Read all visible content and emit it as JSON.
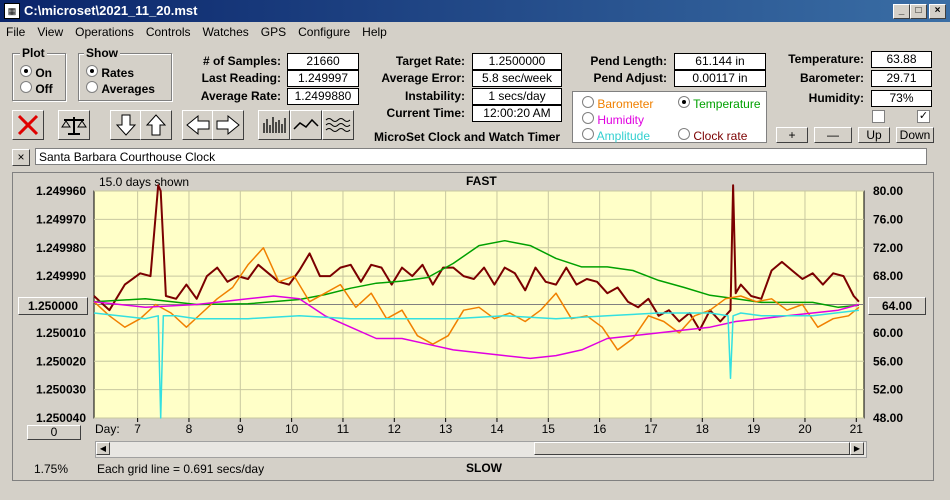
{
  "window": {
    "title": "C:\\microset\\2021_11_20.mst"
  },
  "menu": [
    "File",
    "View",
    "Operations",
    "Controls",
    "Watches",
    "GPS",
    "Configure",
    "Help"
  ],
  "plot": {
    "title": "Plot",
    "on": "On",
    "off": "Off"
  },
  "show": {
    "title": "Show",
    "rates": "Rates",
    "averages": "Averages"
  },
  "stats": {
    "samples_label": "# of Samples:",
    "samples": "21660",
    "last_label": "Last Reading:",
    "last": "1.249997",
    "avg_label": "Average Rate:",
    "avg": "1.2499880",
    "target_label": "Target Rate:",
    "target": "1.2500000",
    "averr_label": "Average Error:",
    "averr": "5.8 sec/week",
    "instab_label": "Instability:",
    "instab": "1 secs/day",
    "curtime_label": "Current Time:",
    "curtime": "12:00:20 AM",
    "pendlen_label": "Pend Length:",
    "pendlen": "61.144 in",
    "pendadj_label": "Pend Adjust:",
    "pendadj": "0.00117 in",
    "temp_label": "Temperature:",
    "temp": "63.88",
    "baro_label": "Barometer:",
    "baro": "29.71",
    "hum_label": "Humidity:",
    "hum": "73%"
  },
  "app_caption": "MicroSet Clock and Watch Timer",
  "sensors": {
    "barometer": "Barometer",
    "temperature": "Temperature",
    "humidity": "Humidity",
    "amplitude": "Amplitude",
    "clockrate": "Clock rate"
  },
  "scale_buttons": [
    "+",
    "—",
    "Up",
    "Down"
  ],
  "clock_name": "Santa Barbara Courthouse Clock",
  "chart": {
    "days_shown": "15.0 days shown",
    "fast": "FAST",
    "slow": "SLOW",
    "grid_note": "Each grid line = 0.691 secs/day",
    "pct": "1.75%",
    "left_center_btn": "1.250000",
    "right_center_btn": "64.00",
    "bottom_left_btn": "0",
    "day_label": "Day:"
  },
  "chart_data": {
    "type": "line",
    "xlabel": "Day:",
    "x_ticks": [
      "7",
      "8",
      "9",
      "10",
      "11",
      "12",
      "13",
      "14",
      "15",
      "16",
      "17",
      "18",
      "19",
      "20",
      "21"
    ],
    "y_left_ticks": [
      "1.249960",
      "1.249970",
      "1.249980",
      "1.249990",
      "1.250000",
      "1.250010",
      "1.250020",
      "1.250030",
      "1.250040"
    ],
    "y_right_ticks": [
      "80.00",
      "76.00",
      "72.00",
      "68.00",
      "64.00",
      "60.00",
      "56.00",
      "52.00",
      "48.00"
    ],
    "xlim": [
      6.0,
      21.0
    ],
    "ylim_left": [
      1.25004,
      1.24996
    ],
    "ylim_right": [
      48,
      80
    ],
    "series": [
      {
        "name": "Clock rate",
        "color": "#7b0000",
        "axis": "left",
        "x": [
          6.0,
          6.3,
          6.6,
          6.9,
          7.1,
          7.25,
          7.3,
          7.4,
          7.6,
          7.8,
          8.0,
          8.2,
          8.4,
          8.6,
          8.8,
          9.0,
          9.2,
          9.4,
          9.6,
          9.8,
          10.0,
          10.2,
          10.4,
          10.6,
          10.8,
          11.0,
          11.2,
          11.4,
          11.6,
          11.8,
          12.0,
          12.2,
          12.4,
          12.6,
          12.8,
          13.0,
          13.2,
          13.4,
          13.6,
          13.8,
          14.0,
          14.2,
          14.4,
          14.6,
          14.8,
          15.0,
          15.2,
          15.4,
          15.6,
          15.8,
          16.0,
          16.2,
          16.4,
          16.6,
          16.8,
          17.0,
          17.2,
          17.4,
          17.6,
          17.8,
          18.0,
          18.2,
          18.4,
          18.45,
          18.5,
          18.6,
          18.8,
          19.0,
          19.2,
          19.4,
          19.6,
          19.8,
          20.0,
          20.2,
          20.4,
          20.6,
          20.8,
          20.9
        ],
        "y": [
          1.249997,
          1.250002,
          1.249993,
          1.249989,
          1.24999,
          1.249958,
          1.24996,
          1.249997,
          1.249998,
          1.249993,
          1.249998,
          1.24999,
          1.249987,
          1.249992,
          1.24999,
          1.249991,
          1.249986,
          1.249989,
          1.249992,
          1.249993,
          1.249988,
          1.249982,
          1.24999,
          1.24999,
          1.249987,
          1.249986,
          1.249992,
          1.249986,
          1.249987,
          1.249993,
          1.249987,
          1.24999,
          1.249986,
          1.249993,
          1.249987,
          1.249987,
          1.24999,
          1.249991,
          1.249987,
          1.249993,
          1.249987,
          1.249989,
          1.249995,
          1.249987,
          1.249992,
          1.249993,
          1.249987,
          1.249993,
          1.249991,
          1.249992,
          1.249996,
          1.249994,
          1.249999,
          1.250001,
          1.249998,
          1.250004,
          1.250002,
          1.250006,
          1.250003,
          1.250009,
          1.250002,
          1.250006,
          1.250002,
          1.249958,
          1.249996,
          1.249993,
          1.249997,
          1.249998,
          1.249988,
          1.249985,
          1.249988,
          1.249991,
          1.249989,
          1.249993,
          1.249989,
          1.24999,
          1.249997,
          1.249999
        ]
      },
      {
        "name": "Temperature",
        "color": "#00a000",
        "axis": "right",
        "x": [
          6.0,
          7.0,
          8.0,
          9.0,
          10.0,
          10.5,
          11.0,
          11.5,
          12.0,
          12.5,
          13.0,
          13.5,
          14.0,
          14.5,
          15.0,
          15.5,
          16.0,
          16.5,
          17.0,
          17.5,
          18.0,
          18.5,
          19.0,
          19.5,
          20.0,
          20.5,
          20.9
        ],
        "y": [
          64.4,
          64.8,
          64.0,
          64.1,
          64.7,
          65.4,
          66.3,
          67.0,
          67.3,
          67.8,
          69.8,
          72.3,
          73.0,
          72.3,
          70.5,
          69.3,
          69.3,
          68.8,
          67.4,
          66.4,
          65.3,
          64.8,
          64.3,
          64.3,
          64.3,
          63.6,
          63.9
        ]
      },
      {
        "name": "Barometer",
        "color": "#f08000",
        "axis": "left",
        "x": [
          6.0,
          6.3,
          6.6,
          6.9,
          7.2,
          7.5,
          7.8,
          8.1,
          8.4,
          8.7,
          9.0,
          9.3,
          9.6,
          9.9,
          10.2,
          10.5,
          10.8,
          11.1,
          11.4,
          11.7,
          12.0,
          12.3,
          12.6,
          12.9,
          13.2,
          13.5,
          13.8,
          14.1,
          14.4,
          14.7,
          15.0,
          15.3,
          15.6,
          15.9,
          16.2,
          16.5,
          16.8,
          17.1,
          17.4,
          17.7,
          18.0,
          18.3,
          18.6,
          18.9,
          19.2,
          19.5,
          19.8,
          20.1,
          20.4,
          20.7,
          20.9
        ],
        "y": [
          1.249999,
          1.250004,
          1.250008,
          1.250005,
          1.25,
          1.250003,
          1.250008,
          1.250003,
          1.249998,
          1.249994,
          1.249986,
          1.24998,
          1.249992,
          1.24999,
          1.249999,
          1.249996,
          1.249993,
          1.250001,
          1.249996,
          1.250005,
          1.250002,
          1.250011,
          1.250014,
          1.250011,
          1.250002,
          1.250001,
          1.250005,
          1.250003,
          1.250006,
          1.250002,
          1.249996,
          1.250005,
          1.250004,
          1.250008,
          1.250016,
          1.250012,
          1.250004,
          1.250006,
          1.25001,
          1.250004,
          1.250002,
          1.249998,
          1.249997,
          1.249999,
          1.249998,
          1.250002,
          1.25,
          1.250008,
          1.250005,
          1.250004,
          1.250001
        ]
      },
      {
        "name": "Humidity",
        "color": "#e000e0",
        "axis": "left",
        "x": [
          6.0,
          7.0,
          8.0,
          9.0,
          9.5,
          10.0,
          10.5,
          11.0,
          11.5,
          12.0,
          12.5,
          13.0,
          13.5,
          14.0,
          14.5,
          15.0,
          15.5,
          16.0,
          16.5,
          17.0,
          17.5,
          18.0,
          18.5,
          19.0,
          19.5,
          20.0,
          20.5,
          20.9
        ],
        "y": [
          1.249999,
          1.250001,
          1.25,
          1.249998,
          1.249997,
          1.249998,
          1.250004,
          1.250008,
          1.250012,
          1.250012,
          1.250014,
          1.250016,
          1.250017,
          1.250018,
          1.250019,
          1.250018,
          1.250016,
          1.250012,
          1.250011,
          1.25001,
          1.250009,
          1.250008,
          1.250006,
          1.250005,
          1.250004,
          1.250003,
          1.250002,
          1.25
        ]
      },
      {
        "name": "Amplitude",
        "color": "#33e0e0",
        "axis": "left",
        "x": [
          6.0,
          7.0,
          7.25,
          7.3,
          7.35,
          7.6,
          8.0,
          9.0,
          10.0,
          11.0,
          12.0,
          13.0,
          14.0,
          15.0,
          16.0,
          17.0,
          18.0,
          18.35,
          18.4,
          18.45,
          18.6,
          19.0,
          20.0,
          20.9
        ],
        "y": [
          1.250003,
          1.250005,
          1.250004,
          1.25004,
          1.250004,
          1.250004,
          1.250005,
          1.250005,
          1.250004,
          1.250005,
          1.250005,
          1.250005,
          1.250004,
          1.250005,
          1.250004,
          1.250003,
          1.250003,
          1.250004,
          1.250026,
          1.250004,
          1.250003,
          1.250004,
          1.250004,
          1.250002
        ]
      }
    ]
  }
}
